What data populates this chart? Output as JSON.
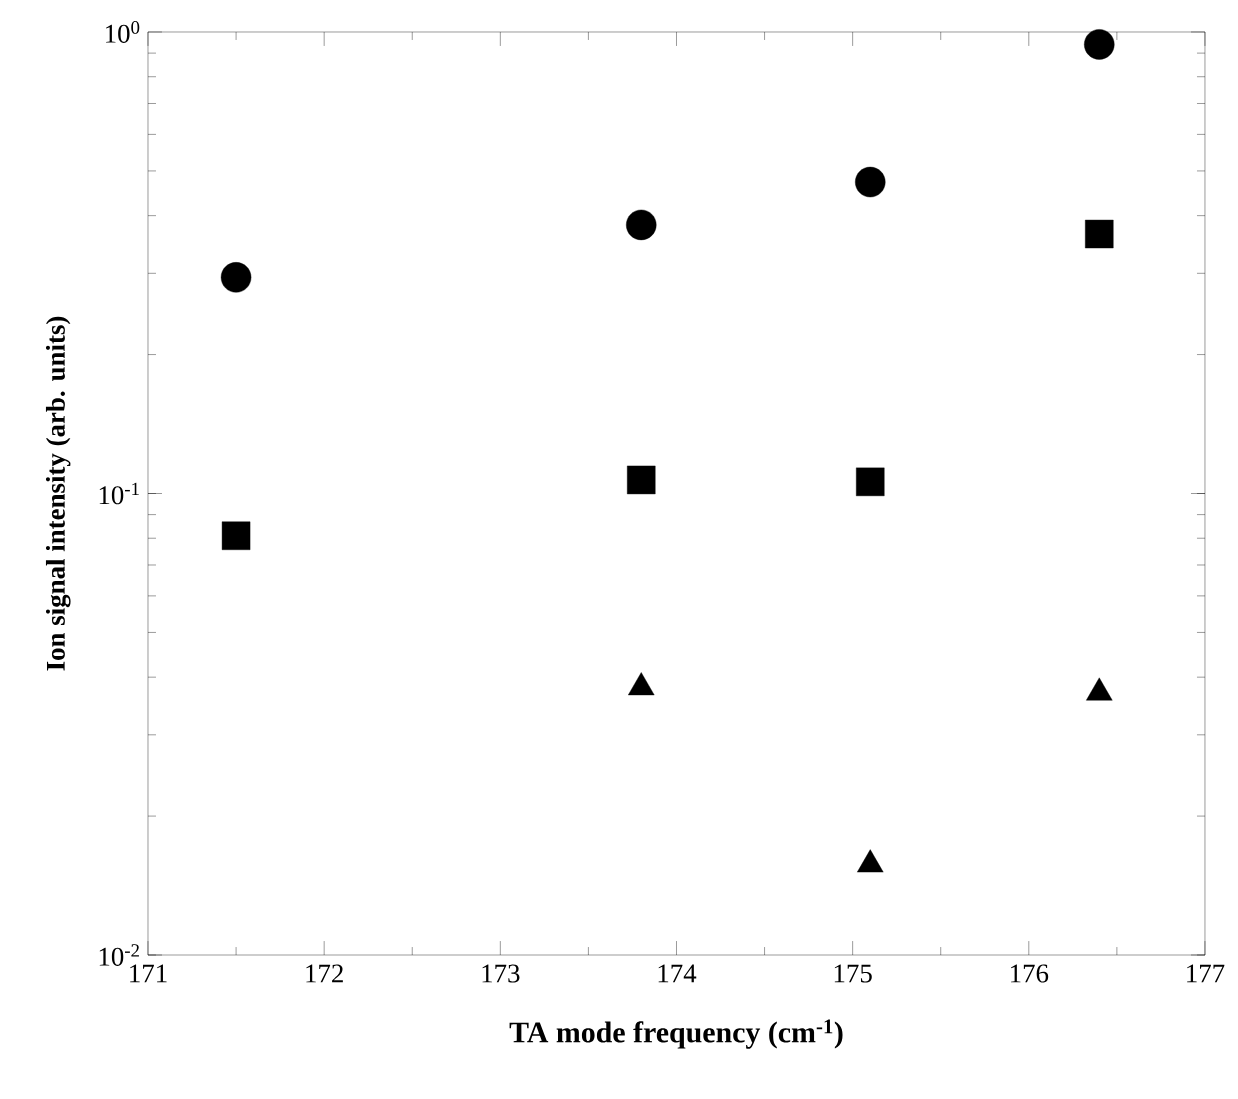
{
  "chart_data": {
    "type": "scatter",
    "xlabel": "TA mode frequency (cm$^{-1}$)",
    "ylabel": "Ion signal intensity (arb. units)",
    "x": [
      171.5,
      173.8,
      175.1,
      176.4
    ],
    "series": [
      {
        "color": "#000000",
        "marker": "circle",
        "values": [
          0.294,
          0.382,
          0.473,
          0.94
        ]
      },
      {
        "color": "#000000",
        "marker": "square",
        "values": [
          0.081,
          0.107,
          0.106,
          0.365
        ]
      },
      {
        "color": "#000000",
        "marker": "triangle",
        "values": [
          null,
          0.038,
          0.0157,
          0.037
        ]
      }
    ],
    "xlim": [
      171,
      177
    ],
    "xticks": [
      171,
      172,
      173,
      174,
      175,
      176,
      177
    ],
    "ylim": [
      0.01,
      1
    ],
    "yticks": [
      {
        "value": 0.01,
        "label": "10$^{-2}$"
      },
      {
        "value": 0.1,
        "label": "10$^{-1}$"
      },
      {
        "value": 1,
        "label": "10$^{0}$"
      }
    ],
    "log": "y",
    "grid": false
  }
}
